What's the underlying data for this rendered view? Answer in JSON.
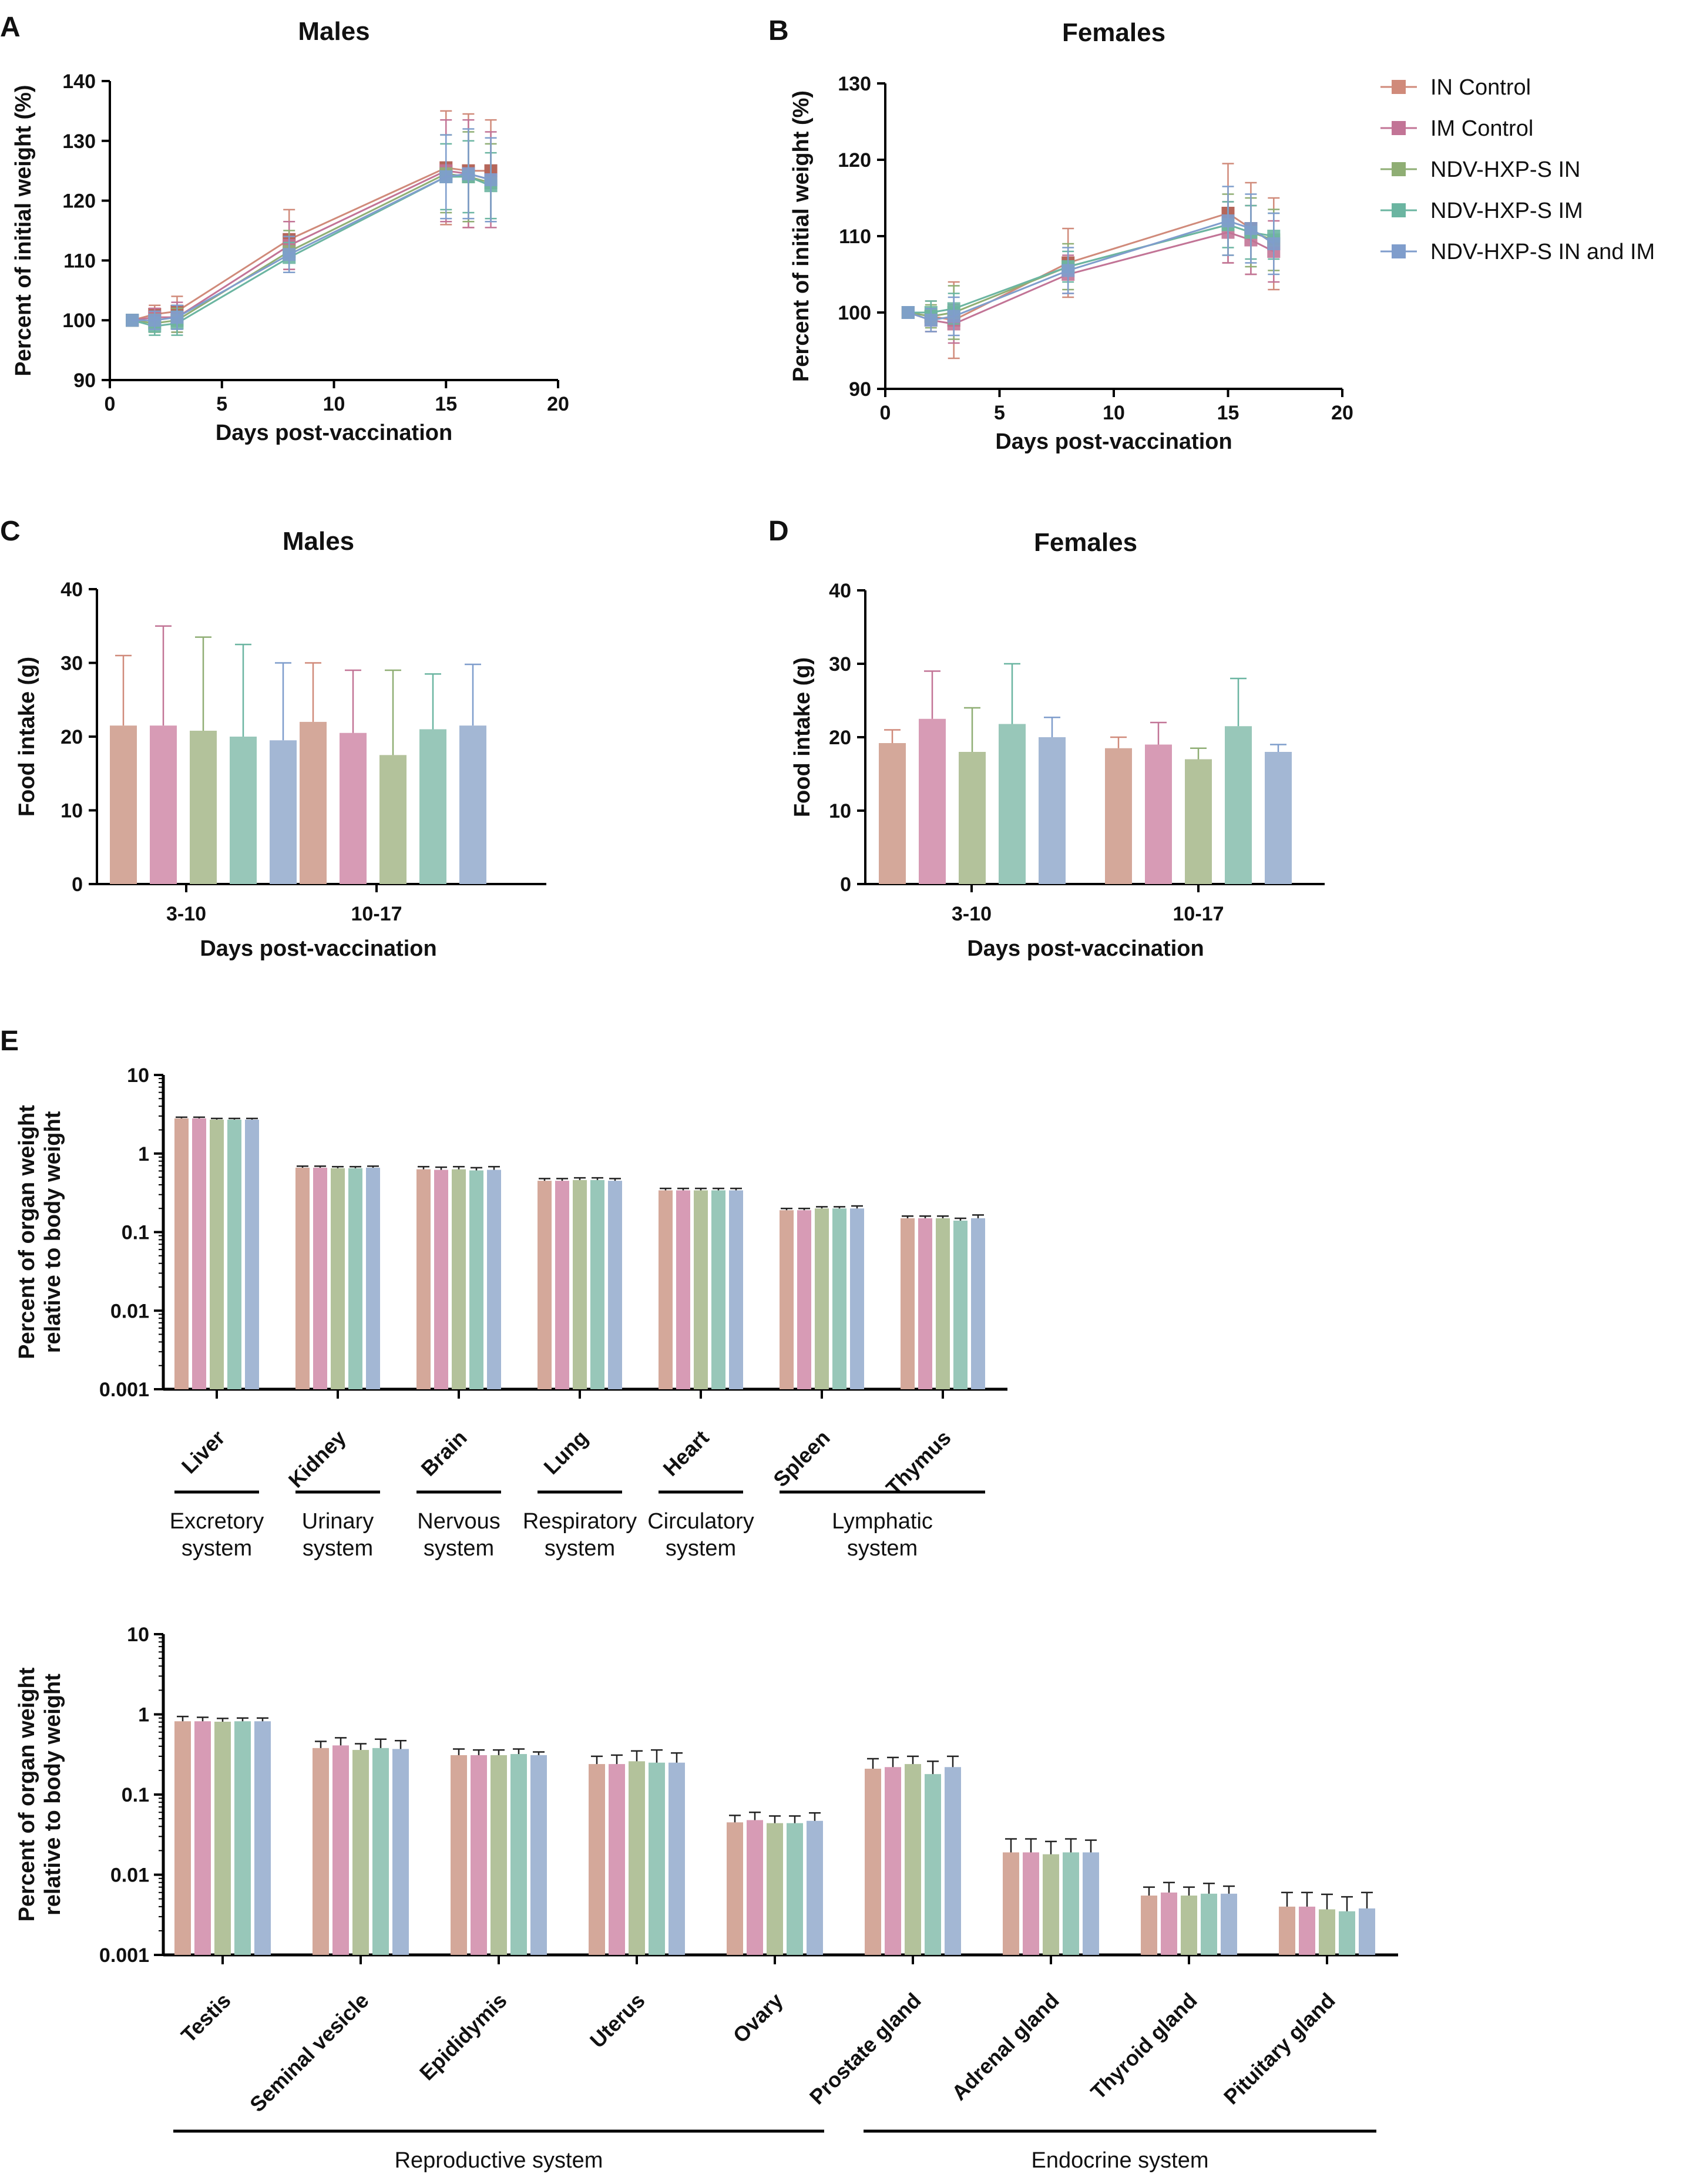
{
  "legend": {
    "entries": [
      "IN Control",
      "IM Control",
      "NDV-HXP-S IN",
      "NDV-HXP-S IM",
      "NDV-HXP-S IN and IM"
    ],
    "colors": [
      "#d4a89a",
      "#d79bb5",
      "#b3c29b",
      "#98c7b9",
      "#a3b7d4"
    ],
    "line_colors": [
      "#d08a7a",
      "#c27496",
      "#8fae74",
      "#6bb5a1",
      "#7f9dcc"
    ]
  },
  "chart_data": [
    {
      "panel": "A",
      "type": "line",
      "title": "Males",
      "xlabel": "Days post-vaccination",
      "ylabel": "Percent of initial weight (%)",
      "xlim": [
        0,
        20
      ],
      "ylim": [
        90,
        140
      ],
      "xticks": [
        0,
        5,
        10,
        15,
        20
      ],
      "yticks": [
        90,
        100,
        110,
        120,
        130,
        140
      ],
      "x": [
        1,
        2,
        3,
        8,
        15,
        16,
        17
      ],
      "series": [
        {
          "name": "IN Control",
          "values": [
            100,
            101,
            101.5,
            113.5,
            125.5,
            125,
            125
          ],
          "err": [
            0,
            1.5,
            2.5,
            5,
            9.5,
            9.5,
            8.5
          ]
        },
        {
          "name": "IM Control",
          "values": [
            100,
            100.5,
            100.5,
            112.5,
            125,
            124.5,
            123.5
          ],
          "err": [
            0,
            1.5,
            2.5,
            4,
            8.5,
            9,
            8
          ]
        },
        {
          "name": "NDV-HXP-S IN",
          "values": [
            100,
            99.5,
            100,
            111.5,
            124.5,
            124,
            123
          ],
          "err": [
            0,
            1.5,
            2,
            3.5,
            6.5,
            7.5,
            6.5
          ]
        },
        {
          "name": "NDV-HXP-S IM",
          "values": [
            100,
            99,
            99.5,
            110.5,
            124,
            124,
            122.5
          ],
          "err": [
            0,
            1.5,
            2,
            2.5,
            5.5,
            6,
            5.5
          ]
        },
        {
          "name": "NDV-HXP-S IN and IM",
          "values": [
            100,
            100,
            100.5,
            111,
            124,
            124.5,
            123.5
          ],
          "err": [
            0,
            1.5,
            2,
            3,
            7,
            7.5,
            7
          ]
        }
      ]
    },
    {
      "panel": "B",
      "type": "line",
      "title": "Females",
      "xlabel": "Days post-vaccination",
      "ylabel": "Percent of initial weight (%)",
      "xlim": [
        0,
        20
      ],
      "ylim": [
        90,
        130
      ],
      "xticks": [
        0,
        5,
        10,
        15,
        20
      ],
      "yticks": [
        90,
        100,
        110,
        120,
        130
      ],
      "x": [
        1,
        2,
        3,
        8,
        15,
        16,
        17
      ],
      "series": [
        {
          "name": "IN Control",
          "values": [
            100,
            99.5,
            99,
            106.5,
            113,
            111,
            109
          ],
          "err": [
            0,
            2,
            5,
            4.5,
            6.5,
            6,
            6
          ]
        },
        {
          "name": "IM Control",
          "values": [
            100,
            99,
            98.5,
            105,
            110.5,
            109.5,
            108
          ],
          "err": [
            0,
            1.5,
            2.5,
            2.5,
            4,
            4.5,
            4
          ]
        },
        {
          "name": "NDV-HXP-S IN",
          "values": [
            100,
            99.5,
            100,
            106,
            111.5,
            110.5,
            109.5
          ],
          "err": [
            0,
            1.5,
            3.5,
            3,
            4,
            4.5,
            4
          ]
        },
        {
          "name": "NDV-HXP-S IM",
          "values": [
            100,
            100,
            100.5,
            106,
            111.5,
            110.5,
            110
          ],
          "err": [
            0,
            1.5,
            2,
            2,
            3,
            3.5,
            3
          ]
        },
        {
          "name": "NDV-HXP-S IN and IM",
          "values": [
            100,
            99,
            99.5,
            105.5,
            112,
            111,
            109
          ],
          "err": [
            0,
            1.5,
            2.5,
            3,
            4.5,
            4.5,
            4
          ]
        }
      ]
    },
    {
      "panel": "C",
      "type": "bar",
      "title": "Males",
      "xlabel": "Days post-vaccination",
      "ylabel": "Food intake (g)",
      "ylim": [
        0,
        40
      ],
      "yticks": [
        0,
        10,
        20,
        30,
        40
      ],
      "categories": [
        "3-10",
        "10-17"
      ],
      "series": [
        {
          "name": "IN Control",
          "values": [
            21.5,
            22
          ],
          "err": [
            9.5,
            8
          ]
        },
        {
          "name": "IM Control",
          "values": [
            21.5,
            20.5
          ],
          "err": [
            13.5,
            8.5
          ]
        },
        {
          "name": "NDV-HXP-S IN",
          "values": [
            20.8,
            17.5
          ],
          "err": [
            12.7,
            11.5
          ]
        },
        {
          "name": "NDV-HXP-S IM",
          "values": [
            20,
            21
          ],
          "err": [
            12.5,
            7.5
          ]
        },
        {
          "name": "NDV-HXP-S IN and IM",
          "values": [
            19.5,
            21.5
          ],
          "err": [
            10.5,
            8.3
          ]
        }
      ]
    },
    {
      "panel": "D",
      "type": "bar",
      "title": "Females",
      "xlabel": "Days post-vaccination",
      "ylabel": "Food intake (g)",
      "ylim": [
        0,
        40
      ],
      "yticks": [
        0,
        10,
        20,
        30,
        40
      ],
      "categories": [
        "3-10",
        "10-17"
      ],
      "series": [
        {
          "name": "IN Control",
          "values": [
            19.2,
            18.5
          ],
          "err": [
            1.8,
            1.5
          ]
        },
        {
          "name": "IM Control",
          "values": [
            22.5,
            19
          ],
          "err": [
            6.5,
            3
          ]
        },
        {
          "name": "NDV-HXP-S IN",
          "values": [
            18,
            17
          ],
          "err": [
            6,
            1.5
          ]
        },
        {
          "name": "NDV-HXP-S IM",
          "values": [
            21.8,
            21.5
          ],
          "err": [
            8.2,
            6.5
          ]
        },
        {
          "name": "NDV-HXP-S IN and IM",
          "values": [
            20,
            18
          ],
          "err": [
            2.7,
            1
          ]
        }
      ]
    },
    {
      "panel": "E",
      "type": "bar",
      "scale": "log",
      "ylabel": [
        "Percent of organ weight",
        "relative to body weight"
      ],
      "ylim": [
        0.001,
        10
      ],
      "yticks": [
        0.001,
        0.01,
        0.1,
        1,
        10
      ],
      "yticklabels": [
        "0.001",
        "0.01",
        "0.1",
        "1",
        "10"
      ],
      "categories": [
        "Liver",
        "Kidney",
        "Brain",
        "Lung",
        "Heart",
        "Spleen",
        "Thymus"
      ],
      "series": [
        {
          "name": "IN Control",
          "values": [
            2.8,
            0.66,
            0.63,
            0.45,
            0.34,
            0.19,
            0.15
          ],
          "err": [
            0.1,
            0.03,
            0.05,
            0.03,
            0.02,
            0.01,
            0.01
          ]
        },
        {
          "name": "IM Control",
          "values": [
            2.8,
            0.66,
            0.62,
            0.45,
            0.34,
            0.19,
            0.15
          ],
          "err": [
            0.1,
            0.03,
            0.05,
            0.03,
            0.02,
            0.01,
            0.01
          ]
        },
        {
          "name": "NDV-HXP-S IN",
          "values": [
            2.7,
            0.65,
            0.63,
            0.46,
            0.34,
            0.2,
            0.15
          ],
          "err": [
            0.1,
            0.03,
            0.05,
            0.03,
            0.02,
            0.01,
            0.01
          ]
        },
        {
          "name": "NDV-HXP-S IM",
          "values": [
            2.7,
            0.65,
            0.61,
            0.46,
            0.34,
            0.2,
            0.14
          ],
          "err": [
            0.1,
            0.03,
            0.05,
            0.03,
            0.02,
            0.01,
            0.01
          ]
        },
        {
          "name": "NDV-HXP-S IN and IM",
          "values": [
            2.7,
            0.66,
            0.62,
            0.45,
            0.34,
            0.2,
            0.15
          ],
          "err": [
            0.1,
            0.03,
            0.06,
            0.03,
            0.02,
            0.015,
            0.015
          ]
        }
      ],
      "groups": [
        {
          "label": [
            "Excretory",
            "system"
          ],
          "from": 0,
          "to": 0
        },
        {
          "label": [
            "Urinary",
            "system"
          ],
          "from": 1,
          "to": 1
        },
        {
          "label": [
            "Nervous",
            "system"
          ],
          "from": 2,
          "to": 2
        },
        {
          "label": [
            "Respiratory",
            "system"
          ],
          "from": 3,
          "to": 3
        },
        {
          "label": [
            "Circulatory",
            "system"
          ],
          "from": 4,
          "to": 4
        },
        {
          "label": [
            "Lymphatic",
            "system"
          ],
          "from": 5,
          "to": 6
        }
      ]
    },
    {
      "panel": "E2",
      "type": "bar",
      "scale": "log",
      "ylabel": [
        "Percent of organ weight",
        "relative to body weight"
      ],
      "ylim": [
        0.001,
        10
      ],
      "yticks": [
        0.001,
        0.01,
        0.1,
        1,
        10
      ],
      "yticklabels": [
        "0.001",
        "0.01",
        "0.1",
        "1",
        "10"
      ],
      "categories": [
        "Testis",
        "Seminal vesicle",
        "Epididymis",
        "Uterus",
        "Ovary",
        "Prostate gland",
        "Adrenal gland",
        "Thyroid gland",
        "Pituitary gland"
      ],
      "series": [
        {
          "name": "IN Control",
          "values": [
            0.82,
            0.38,
            0.31,
            0.24,
            0.045,
            0.21,
            0.019,
            0.0055,
            0.004
          ],
          "err": [
            0.12,
            0.08,
            0.06,
            0.06,
            0.01,
            0.07,
            0.009,
            0.0015,
            0.002
          ]
        },
        {
          "name": "IM Control",
          "values": [
            0.82,
            0.41,
            0.31,
            0.24,
            0.048,
            0.22,
            0.019,
            0.006,
            0.004
          ],
          "err": [
            0.1,
            0.1,
            0.05,
            0.07,
            0.012,
            0.07,
            0.009,
            0.002,
            0.002
          ]
        },
        {
          "name": "NDV-HXP-S IN",
          "values": [
            0.81,
            0.36,
            0.31,
            0.26,
            0.044,
            0.24,
            0.018,
            0.0055,
            0.0037
          ],
          "err": [
            0.08,
            0.07,
            0.05,
            0.09,
            0.01,
            0.06,
            0.008,
            0.0015,
            0.002
          ]
        },
        {
          "name": "NDV-HXP-S IM",
          "values": [
            0.82,
            0.38,
            0.32,
            0.25,
            0.044,
            0.18,
            0.019,
            0.0058,
            0.0035
          ],
          "err": [
            0.08,
            0.11,
            0.05,
            0.11,
            0.01,
            0.08,
            0.009,
            0.002,
            0.0018
          ]
        },
        {
          "name": "NDV-HXP-S IN and IM",
          "values": [
            0.82,
            0.37,
            0.31,
            0.25,
            0.047,
            0.22,
            0.019,
            0.0058,
            0.0038
          ],
          "err": [
            0.08,
            0.1,
            0.03,
            0.08,
            0.012,
            0.08,
            0.008,
            0.0014,
            0.0022
          ]
        }
      ],
      "groups": [
        {
          "label": [
            "Reproductive system"
          ],
          "from": 0,
          "to": 4
        },
        {
          "label": [
            "Endocrine system"
          ],
          "from": 5,
          "to": 8
        }
      ]
    }
  ]
}
